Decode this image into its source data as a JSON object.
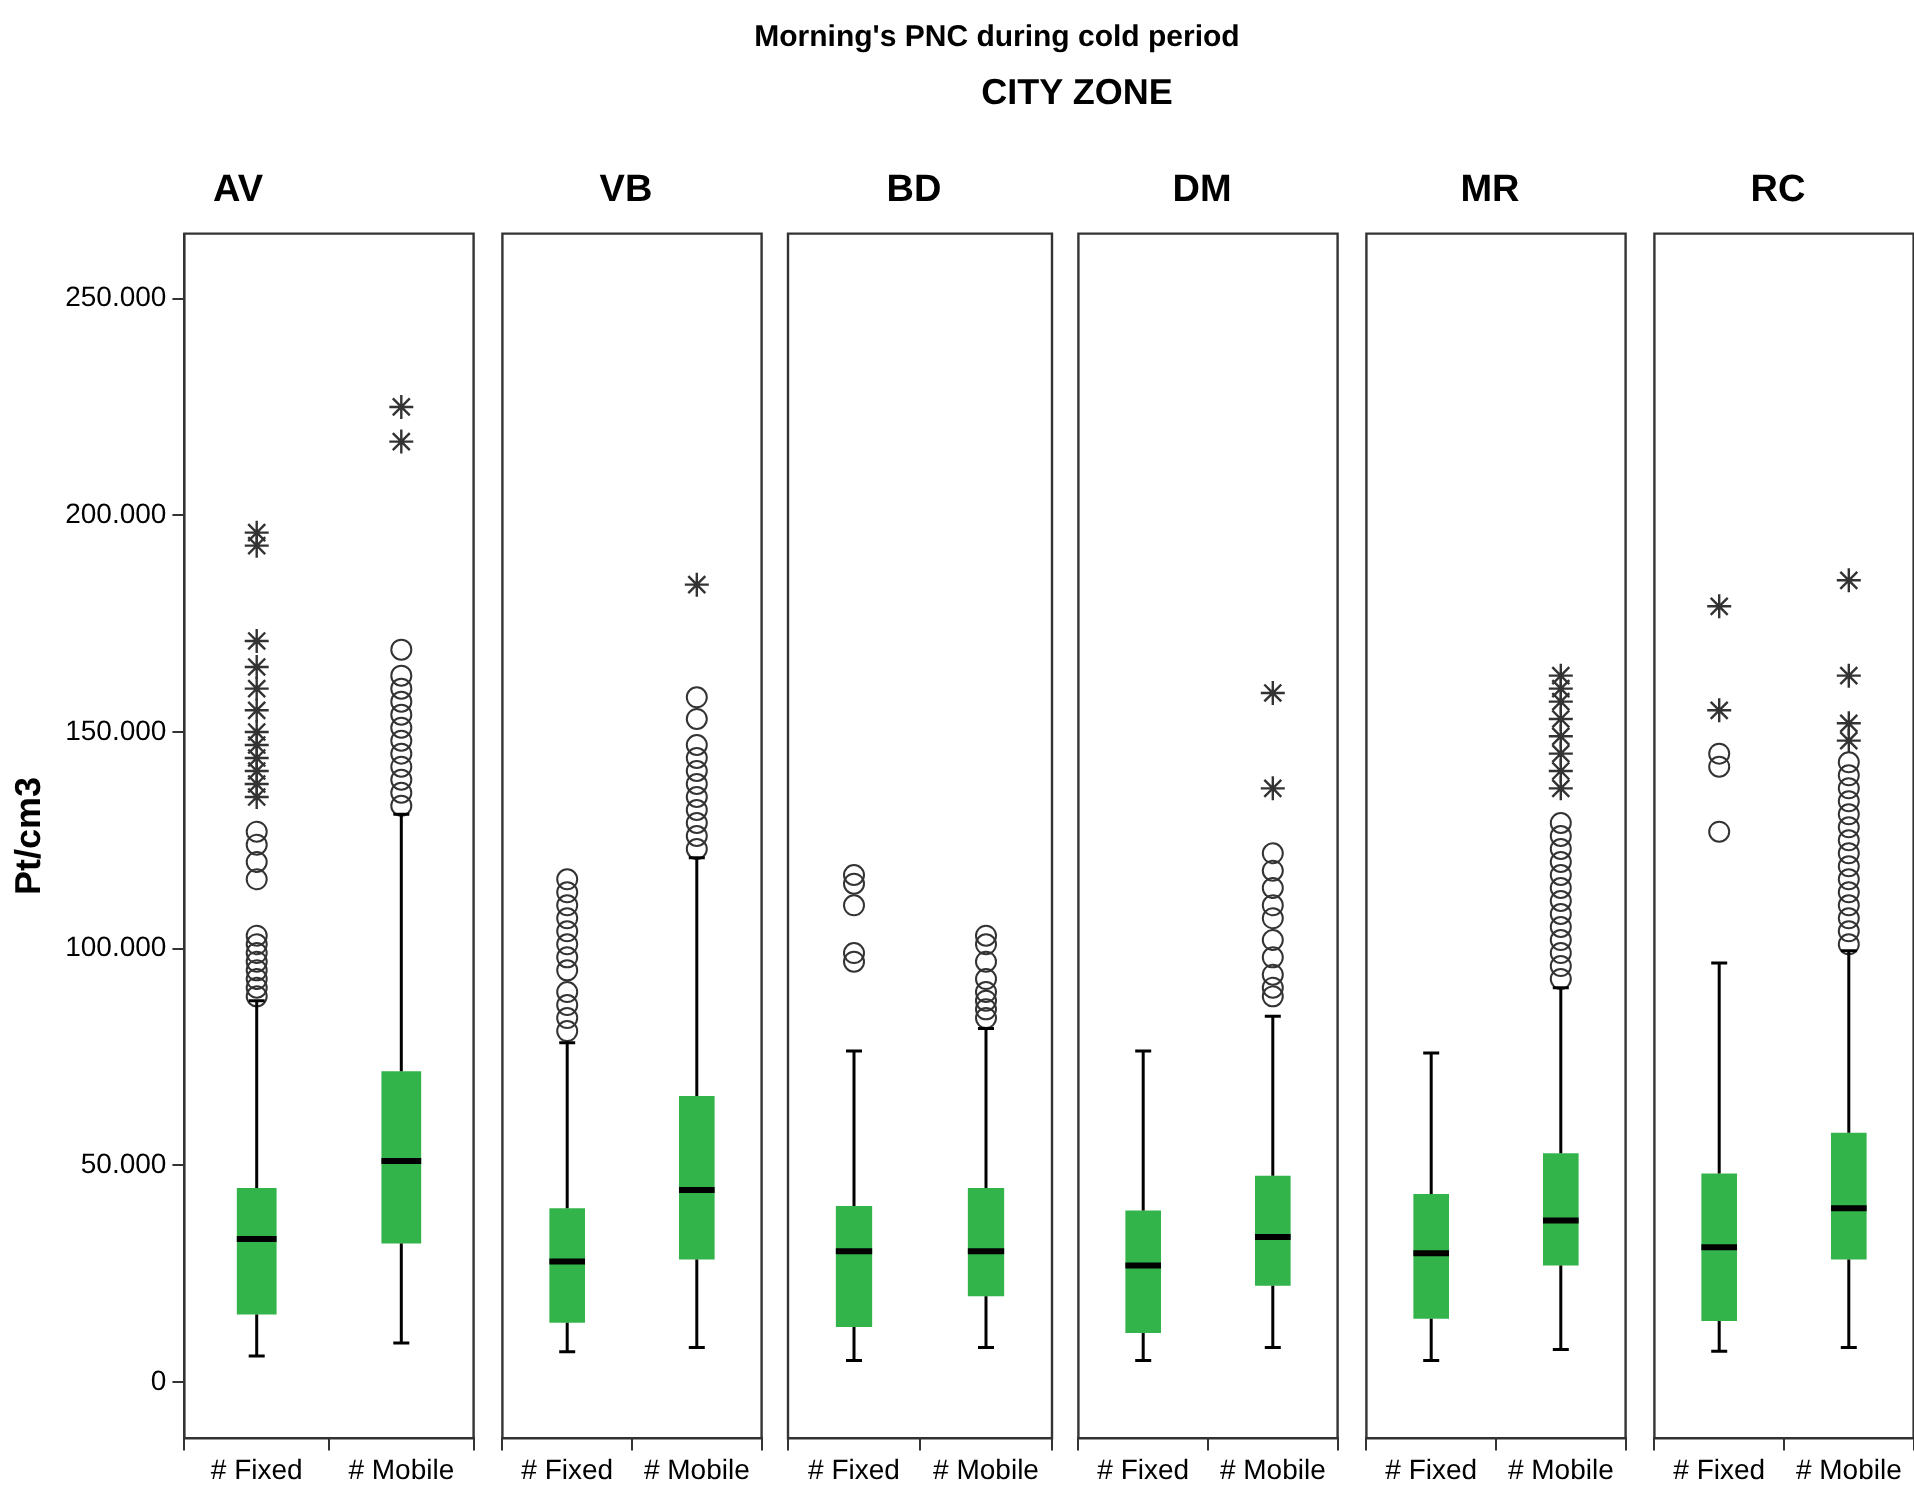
{
  "chart_data": [
    {
      "type": "box",
      "title": "AV",
      "annotations": [
        "Morning's PNC during cold period",
        "CITY ZONE"
      ],
      "ylabel": "Pt/cm3",
      "categories": [
        "# Fixed",
        "# Mobile"
      ],
      "color": "#33b44a",
      "ylim": [
        -13000,
        265000
      ],
      "yticks": [
        {
          "value": 0,
          "label": "0"
        },
        {
          "value": 50000,
          "label": "50.000"
        },
        {
          "value": 100000,
          "label": "100.000"
        },
        {
          "value": 150000,
          "label": "150.000"
        },
        {
          "value": 200000,
          "label": "200.000"
        },
        {
          "value": 250000,
          "label": "250.000"
        }
      ],
      "grid": false,
      "legend": false,
      "boxes": [
        {
          "low": 6000,
          "q1": 15600,
          "median": 33000,
          "q3": 44800,
          "high": 88000,
          "outliers": [
            89000,
            91000,
            93000,
            95000,
            97000,
            99000,
            101000,
            103000,
            116000,
            120000,
            124000,
            127000,
            135000,
            138000,
            141000,
            144000,
            147000,
            150000,
            155000,
            160000,
            165000,
            171000,
            193000,
            196000
          ]
        },
        {
          "low": 9000,
          "q1": 32000,
          "median": 51000,
          "q3": 71700,
          "high": 131000,
          "outliers": [
            133000,
            136000,
            139000,
            142000,
            145000,
            148000,
            151000,
            154000,
            157000,
            160000,
            163000,
            169000,
            217000,
            225000
          ]
        }
      ]
    },
    {
      "type": "box",
      "title": "VB",
      "categories": [
        "# Fixed",
        "# Mobile"
      ],
      "color": "#33b44a",
      "ylim": [
        -13000,
        265000
      ],
      "tick_labels": "x",
      "grid": false,
      "legend": false,
      "boxes": [
        {
          "low": 7000,
          "q1": 13700,
          "median": 27800,
          "q3": 40100,
          "high": 78300,
          "outliers": [
            81000,
            84000,
            87000,
            90000,
            95000,
            98000,
            101000,
            104000,
            107000,
            110000,
            113000,
            116000
          ]
        },
        {
          "low": 8000,
          "q1": 28300,
          "median": 44300,
          "q3": 66000,
          "high": 121000,
          "outliers": [
            123000,
            126000,
            129000,
            132000,
            135000,
            138000,
            141000,
            144000,
            147000,
            153000,
            158000,
            184000
          ]
        }
      ]
    },
    {
      "type": "box",
      "title": "BD",
      "categories": [
        "# Fixed",
        "# Mobile"
      ],
      "color": "#33b44a",
      "ylim": [
        -13000,
        265000
      ],
      "tick_labels": "x",
      "grid": false,
      "legend": false,
      "boxes": [
        {
          "low": 5000,
          "q1": 12700,
          "median": 30200,
          "q3": 40600,
          "high": 76400,
          "outliers": [
            97000,
            99000,
            110000,
            115000,
            117000
          ]
        },
        {
          "low": 8000,
          "q1": 19800,
          "median": 30200,
          "q3": 44800,
          "high": 81600,
          "outliers": [
            84000,
            86000,
            88000,
            90000,
            93000,
            97000,
            101000,
            103000
          ]
        }
      ]
    },
    {
      "type": "box",
      "title": "DM",
      "categories": [
        "# Fixed",
        "# Mobile"
      ],
      "color": "#33b44a",
      "ylim": [
        -13000,
        265000
      ],
      "tick_labels": "x",
      "grid": false,
      "legend": false,
      "boxes": [
        {
          "low": 5000,
          "q1": 11300,
          "median": 26900,
          "q3": 39600,
          "high": 76400
        },
        {
          "low": 8000,
          "q1": 22200,
          "median": 33500,
          "q3": 47600,
          "high": 84400,
          "outliers": [
            89000,
            91000,
            94000,
            98000,
            102000,
            107000,
            110000,
            114000,
            118000,
            122000,
            137000,
            159000
          ]
        }
      ]
    },
    {
      "type": "box",
      "title": "MR",
      "categories": [
        "# Fixed",
        "# Mobile"
      ],
      "color": "#33b44a",
      "ylim": [
        -13000,
        265000
      ],
      "tick_labels": "x",
      "grid": false,
      "legend": false,
      "boxes": [
        {
          "low": 5000,
          "q1": 14600,
          "median": 29700,
          "q3": 43400,
          "high": 75900
        },
        {
          "low": 7500,
          "q1": 26900,
          "median": 37300,
          "q3": 52800,
          "high": 91000,
          "outliers": [
            93000,
            96000,
            99000,
            102000,
            105000,
            108000,
            111000,
            114000,
            117000,
            120000,
            123000,
            126000,
            129000,
            137000,
            141000,
            145000,
            149000,
            153000,
            157000,
            160000,
            163000
          ]
        }
      ]
    },
    {
      "type": "box",
      "title": "RC",
      "categories": [
        "# Fixed",
        "# Mobile"
      ],
      "color": "#33b44a",
      "ylim": [
        -13000,
        265000
      ],
      "tick_labels": "x",
      "grid": false,
      "legend": false,
      "boxes": [
        {
          "low": 7100,
          "q1": 14100,
          "median": 31100,
          "q3": 48100,
          "high": 96700,
          "outliers": [
            127000,
            142000,
            145000,
            155000,
            179000
          ]
        },
        {
          "low": 8000,
          "q1": 28300,
          "median": 40100,
          "q3": 57500,
          "high": 99500,
          "outliers": [
            101000,
            104000,
            107000,
            110000,
            113000,
            116000,
            119000,
            122000,
            125000,
            128000,
            131000,
            134000,
            137000,
            140000,
            143000,
            148000,
            152000,
            163000,
            185000
          ]
        }
      ]
    }
  ]
}
